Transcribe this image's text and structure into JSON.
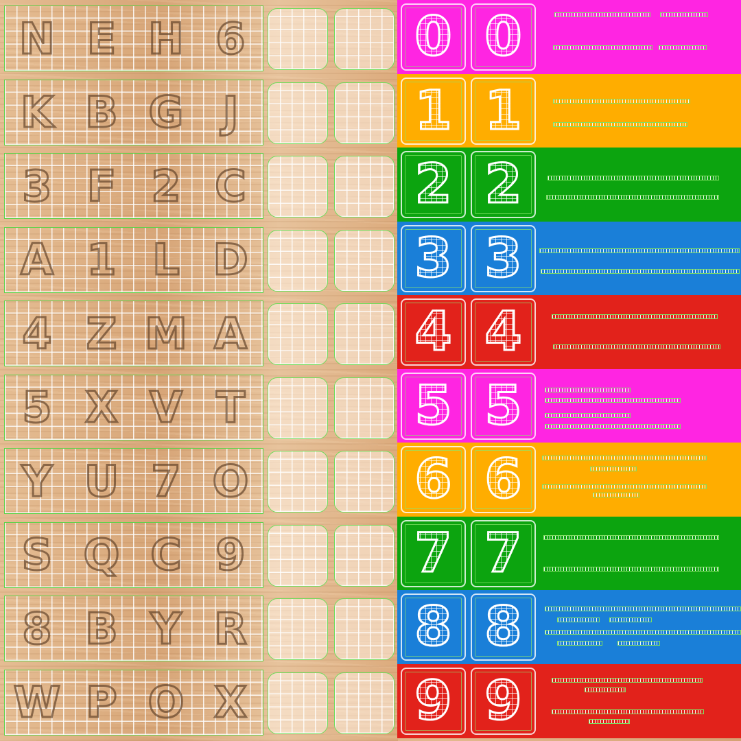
{
  "rows": [
    {
      "letters": [
        "N",
        "E",
        "H",
        "6"
      ],
      "digit": "0",
      "color": "#ff25e2"
    },
    {
      "letters": [
        "K",
        "B",
        "G",
        "J"
      ],
      "digit": "1",
      "color": "#ffad00"
    },
    {
      "letters": [
        "3",
        "F",
        "2",
        "C"
      ],
      "digit": "2",
      "color": "#0ca40f"
    },
    {
      "letters": [
        "A",
        "1",
        "L",
        "D"
      ],
      "digit": "3",
      "color": "#1a7fd8"
    },
    {
      "letters": [
        "4",
        "Z",
        "M",
        "A"
      ],
      "digit": "4",
      "color": "#e2221b"
    },
    {
      "letters": [
        "5",
        "X",
        "V",
        "T"
      ],
      "digit": "5",
      "color": "#ff25e2"
    },
    {
      "letters": [
        "Y",
        "U",
        "7",
        "O"
      ],
      "digit": "6",
      "color": "#ffad00"
    },
    {
      "letters": [
        "S",
        "Q",
        "C",
        "9"
      ],
      "digit": "7",
      "color": "#0ca40f"
    },
    {
      "letters": [
        "8",
        "B",
        "Y",
        "R"
      ],
      "digit": "8",
      "color": "#1a7fd8"
    },
    {
      "letters": [
        "W",
        "P",
        "O",
        "X"
      ],
      "digit": "9",
      "color": "#e2221b"
    }
  ]
}
